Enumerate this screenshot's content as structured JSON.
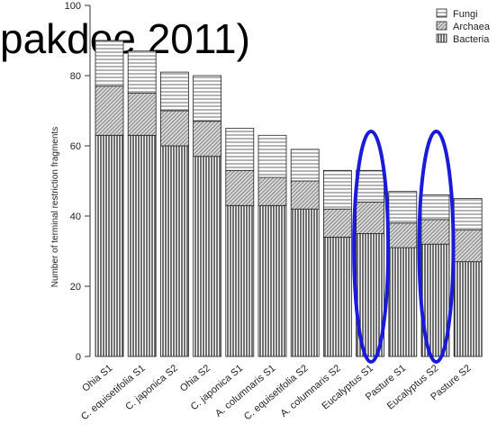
{
  "chart_data": {
    "type": "bar",
    "stacked": true,
    "title_fragment": "pakdee 2011)",
    "ylabel": "Number of terminal restriction fragments",
    "xlabel": "",
    "ylim": [
      0,
      100
    ],
    "yticks": [
      0,
      20,
      40,
      60,
      80,
      100
    ],
    "grid": false,
    "legend_position": "top-right",
    "categories": [
      "Ohia S1",
      "C. equisetifolia S1",
      "C. japonica S2",
      "Ohia S2",
      "C. japonica S1",
      "A. columnaris S1",
      "C. equisetifolia S2",
      "A. columnaris S2",
      "Eucalyptus S1",
      "Pasture S1",
      "Eucalyptus S2",
      "Pasture S2"
    ],
    "series": [
      {
        "name": "Bacteria",
        "pattern": "vertical-lines",
        "values": [
          63,
          63,
          60,
          57,
          43,
          43,
          42,
          34,
          35,
          31,
          32,
          27
        ]
      },
      {
        "name": "Archaea",
        "pattern": "diagonal-hatch",
        "values": [
          14,
          12,
          10,
          10,
          10,
          8,
          8,
          8,
          9,
          7,
          7,
          9
        ]
      },
      {
        "name": "Fungi",
        "pattern": "horizontal-lines",
        "values": [
          13,
          12,
          11,
          13,
          12,
          12,
          9,
          11,
          9,
          9,
          7,
          9
        ]
      }
    ],
    "legend": [
      "Fungi",
      "Archaea",
      "Bacteria"
    ],
    "highlighted_categories": [
      "Eucalyptus S1",
      "Eucalyptus S2"
    ],
    "highlight_color": "#1a1adb"
  }
}
